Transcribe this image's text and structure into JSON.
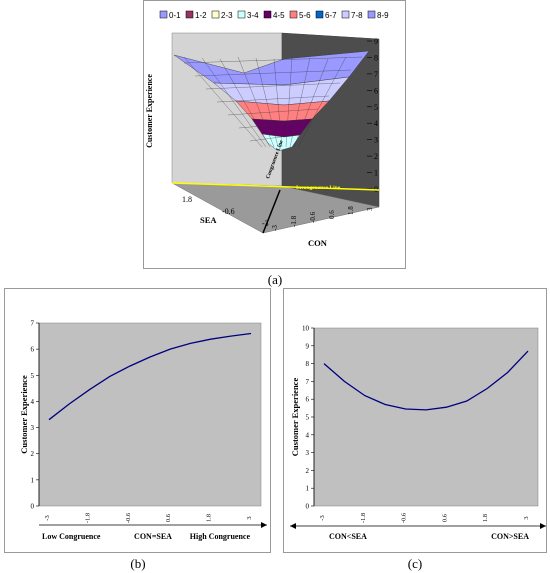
{
  "captions": {
    "a": "(a)",
    "b": "(b)",
    "c": "(c)"
  },
  "chart_data": [
    {
      "type": "surface",
      "title": "",
      "zlabel": "Customer Experience",
      "xlabel": "CON",
      "ylabel": "SEA",
      "zlim": [
        0,
        9
      ],
      "z_ticks": [
        "9",
        "8",
        "7",
        "6",
        "5",
        "4",
        "3",
        "2",
        "1",
        "0"
      ],
      "con_ticks": [
        "3",
        "1.8",
        "0.6",
        "-0.6",
        "-1.8",
        "-3"
      ],
      "sea_ticks": [
        "1.8",
        "-0.6",
        "-3"
      ],
      "annotations": {
        "congruence_line": "Congruence Line",
        "incongruence_line": "Incongruence Line"
      },
      "legend": [
        {
          "label": "0-1",
          "color": "#9999ff"
        },
        {
          "label": "1-2",
          "color": "#993366"
        },
        {
          "label": "2-3",
          "color": "#ffffcc"
        },
        {
          "label": "3-4",
          "color": "#ccffff"
        },
        {
          "label": "4-5",
          "color": "#660066"
        },
        {
          "label": "5-6",
          "color": "#ff8080"
        },
        {
          "label": "6-7",
          "color": "#0066cc"
        },
        {
          "label": "7-8",
          "color": "#ccccff"
        },
        {
          "label": "8-9",
          "color": "#9999ff"
        }
      ],
      "legend_position": "top"
    },
    {
      "type": "line",
      "ylabel": "Customer Experience",
      "xlabel_left": "Low Congruence",
      "xlabel_center": "CON=SEA",
      "xlabel_right": "High Congruence",
      "categories": [
        "-3",
        "-2.4",
        "-1.8",
        "-1.2",
        "-0.6",
        "0",
        "0.6",
        "1.2",
        "1.8",
        "2.4",
        "3"
      ],
      "tick_labels": [
        "-3",
        "-1.8",
        "-0.6",
        "0.6",
        "1.8",
        "3"
      ],
      "values": [
        3.3,
        3.9,
        4.45,
        4.95,
        5.35,
        5.7,
        6.0,
        6.22,
        6.38,
        6.5,
        6.6
      ],
      "ylim": [
        0,
        7
      ],
      "y_ticks": [
        "7",
        "6",
        "5",
        "4",
        "3",
        "2",
        "1",
        "0"
      ],
      "background": "#c0c0c0",
      "line_color": "#000080"
    },
    {
      "type": "line",
      "ylabel": "Customer Experience",
      "xlabel_left": "CON<SEA",
      "xlabel_right": "CON>SEA",
      "categories": [
        "-3",
        "-2.4",
        "-1.8",
        "-1.2",
        "-0.6",
        "0",
        "0.6",
        "1.2",
        "1.8",
        "2.4",
        "3"
      ],
      "tick_labels": [
        "-3",
        "-1.8",
        "-0.6",
        "0.6",
        "1.8",
        "3"
      ],
      "values": [
        8.0,
        7.0,
        6.2,
        5.7,
        5.45,
        5.4,
        5.55,
        5.9,
        6.6,
        7.5,
        8.7
      ],
      "ylim": [
        0,
        10
      ],
      "y_ticks": [
        "10",
        "9",
        "8",
        "7",
        "6",
        "5",
        "4",
        "3",
        "2",
        "1",
        "0"
      ],
      "background": "#c0c0c0",
      "line_color": "#000080"
    }
  ]
}
